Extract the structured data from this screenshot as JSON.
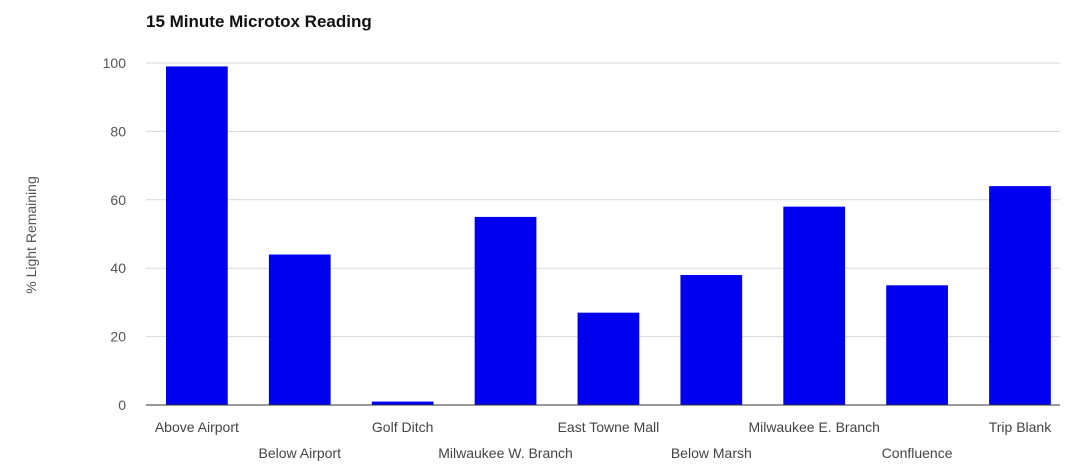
{
  "chart_data": {
    "type": "bar",
    "title": "15 Minute Microtox Reading",
    "ylabel": "% Light Remaining",
    "xlabel": "",
    "ylim": [
      0,
      100
    ],
    "yticks": [
      "0",
      "20",
      "40",
      "60",
      "80",
      "100"
    ],
    "grid": true,
    "legend": "none",
    "bar_color": "#0000ee",
    "categories": [
      "Above Airport",
      "Below Airport",
      "Golf Ditch",
      "Milwaukee W. Branch",
      "East Towne Mall",
      "Below Marsh",
      "Milwaukee E. Branch",
      "Confluence",
      "Trip Blank"
    ],
    "values": [
      99,
      44,
      1,
      55,
      27,
      38,
      58,
      35,
      64
    ]
  }
}
